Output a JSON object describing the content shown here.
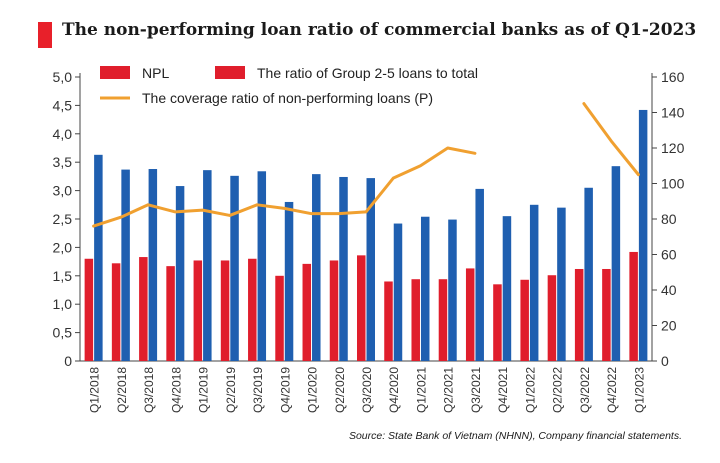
{
  "title": "The non-performing loan ratio of commercial banks as of Q1-2023",
  "source": "Source: State Bank of Vietnam (NHNN), Company financial statements.",
  "colors": {
    "npl": "#e01e2c",
    "group25": "#1f5fb0",
    "coverage": "#f0a030",
    "title_accent": "#e8202a"
  },
  "chart_data": {
    "type": "bar",
    "categories": [
      "Q1/2018",
      "Q2/2018",
      "Q3/2018",
      "Q4/2018",
      "Q1/2019",
      "Q2/2019",
      "Q3/2019",
      "Q4/2019",
      "Q1/2020",
      "Q2/2020",
      "Q3/2020",
      "Q4/2020",
      "Q1/2021",
      "Q2/2021",
      "Q3/2021",
      "Q4/2021",
      "Q1/2022",
      "Q2/2022",
      "Q3/2022",
      "Q4/2022",
      "Q1/2023"
    ],
    "series": [
      {
        "name": "NPL",
        "axis": "left",
        "values": [
          1.8,
          1.72,
          1.83,
          1.67,
          1.77,
          1.77,
          1.8,
          1.5,
          1.71,
          1.77,
          1.86,
          1.4,
          1.44,
          1.44,
          1.63,
          1.35,
          1.43,
          1.51,
          1.62,
          1.62,
          1.92
        ]
      },
      {
        "name": "The ratio of Group 2-5 loans to total",
        "axis": "left",
        "values": [
          3.63,
          3.37,
          3.38,
          3.08,
          3.36,
          3.26,
          3.34,
          2.8,
          3.29,
          3.24,
          3.22,
          2.42,
          2.54,
          2.49,
          3.03,
          2.55,
          2.75,
          2.7,
          3.05,
          3.43,
          4.42
        ]
      },
      {
        "name": "The coverage ratio of non-performing loans (P)",
        "axis": "right",
        "type": "line",
        "values": [
          76,
          81,
          88,
          84,
          85,
          82,
          88,
          86,
          83,
          83,
          84,
          103,
          110,
          120,
          117,
          null,
          null,
          null,
          145,
          124,
          105
        ]
      }
    ],
    "y_left": {
      "ylim": [
        0,
        5
      ],
      "ticks": [
        "0",
        "0,5",
        "1,0",
        "1,5",
        "2,0",
        "2,5",
        "3,0",
        "3,5",
        "4,0",
        "4,5",
        "5,0"
      ]
    },
    "y_right": {
      "ylim": [
        0,
        160
      ],
      "ticks": [
        "0",
        "20",
        "40",
        "60",
        "80",
        "100",
        "120",
        "140",
        "160"
      ]
    },
    "legend_position": "top-left",
    "grid": false
  }
}
